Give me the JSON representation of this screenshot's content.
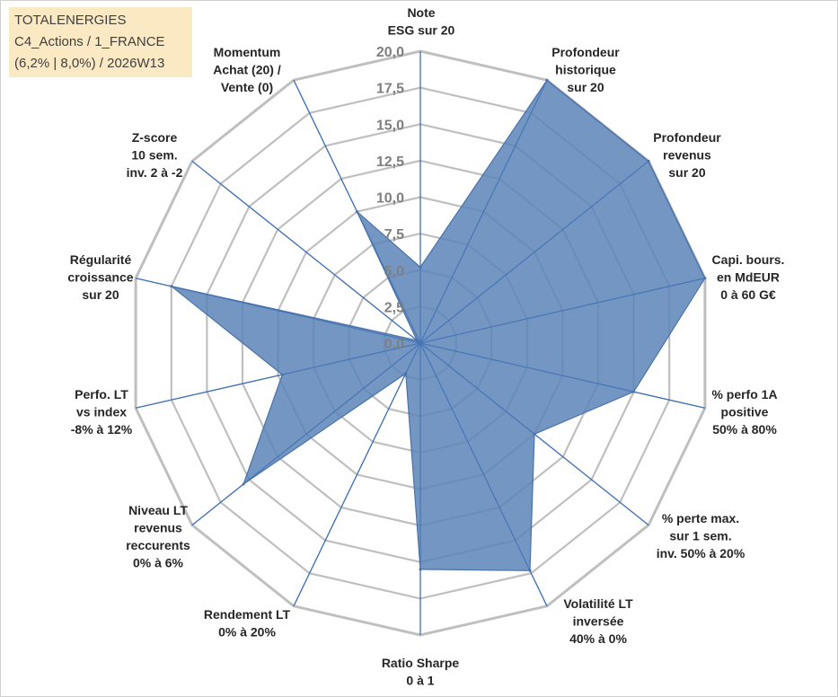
{
  "info": {
    "line1": "TOTALENERGIES",
    "line2": "C4_Actions / 1_FRANCE",
    "line3": "(6,2% | 8,0%) / 2026W13"
  },
  "chart_data": {
    "type": "radar",
    "title": "",
    "rmax": 20,
    "tick_values": [
      0,
      2.5,
      5,
      7.5,
      10,
      12.5,
      15,
      17.5,
      20
    ],
    "tick_labels": [
      "0,0",
      "2,5",
      "5,0",
      "7,5",
      "10,0",
      "12,5",
      "15,0",
      "17,5",
      "20,0"
    ],
    "axes": [
      {
        "label": [
          "Note",
          "ESG sur 20"
        ],
        "value": 5.2
      },
      {
        "label": [
          "Profondeur",
          "historique",
          "sur 20"
        ],
        "value": 20
      },
      {
        "label": [
          "Profondeur",
          "revenus",
          "sur 20"
        ],
        "value": 20
      },
      {
        "label": [
          "Capi. bours.",
          "en MdEUR",
          "0 à 60 G€"
        ],
        "value": 20
      },
      {
        "label": [
          "% perfo 1A",
          "positive",
          "50% à 80%"
        ],
        "value": 15
      },
      {
        "label": [
          "% perte max.",
          "sur 1 sem.",
          "inv. 50% à 20%"
        ],
        "value": 10
      },
      {
        "label": [
          "Volatilité LT",
          "inversée",
          "40% à 0%"
        ],
        "value": 17.3
      },
      {
        "label": [
          "Ratio Sharpe",
          "0 à 1"
        ],
        "value": 15.5
      },
      {
        "label": [
          "Rendement LT",
          "0% à 20%"
        ],
        "value": 2.3
      },
      {
        "label": [
          "Niveau LT",
          "revenus",
          "reccurents",
          "0% à 6%"
        ],
        "value": 15.5
      },
      {
        "label": [
          "Perfo. LT",
          "vs index",
          "-8% à 12%"
        ],
        "value": 9.7
      },
      {
        "label": [
          "Régularité",
          "croissance",
          "sur 20"
        ],
        "value": 17.5
      },
      {
        "label": [
          "Z-score",
          "10 sem.",
          "inv. 2 à -2"
        ],
        "value": 0.3
      },
      {
        "label": [
          "Momentum",
          "Achat (20) /",
          "Vente (0)"
        ],
        "value": 10
      }
    ],
    "colors": {
      "fill": "#5b84b8",
      "stroke": "#4a72a8",
      "spoke": "#3f6fb6",
      "grid": "#bfbfbf"
    }
  }
}
